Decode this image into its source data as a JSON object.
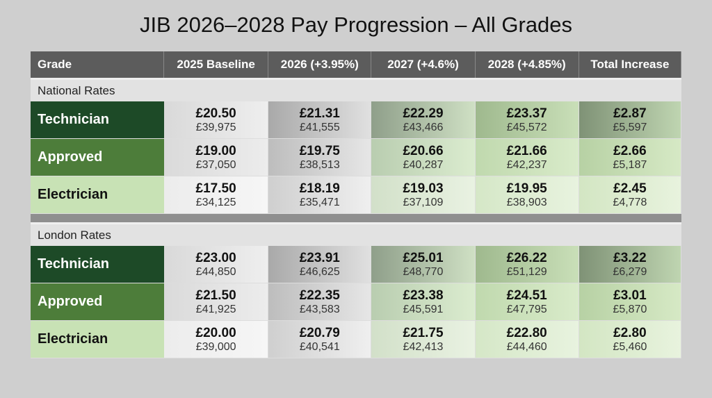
{
  "title": "JIB 2026–2028 Pay Progression – All Grades",
  "table": {
    "headers": [
      "Grade",
      "2025 Baseline",
      "2026 (+3.95%)",
      "2027 (+4.6%)",
      "2028 (+4.85%)",
      "Total Increase"
    ],
    "sections": [
      {
        "name": "National Rates",
        "rows": [
          {
            "grade": "Technician",
            "cells": [
              [
                "£20.50",
                "£39,975"
              ],
              [
                "£21.31",
                "£41,555"
              ],
              [
                "£22.29",
                "£43,466"
              ],
              [
                "£23.37",
                "£45,572"
              ],
              [
                "£2.87",
                "£5,597"
              ]
            ]
          },
          {
            "grade": "Approved",
            "cells": [
              [
                "£19.00",
                "£37,050"
              ],
              [
                "£19.75",
                "£38,513"
              ],
              [
                "£20.66",
                "£40,287"
              ],
              [
                "£21.66",
                "£42,237"
              ],
              [
                "£2.66",
                "£5,187"
              ]
            ]
          },
          {
            "grade": "Electrician",
            "cells": [
              [
                "£17.50",
                "£34,125"
              ],
              [
                "£18.19",
                "£35,471"
              ],
              [
                "£19.03",
                "£37,109"
              ],
              [
                "£19.95",
                "£38,903"
              ],
              [
                "£2.45",
                "£4,778"
              ]
            ]
          }
        ]
      },
      {
        "name": "London Rates",
        "rows": [
          {
            "grade": "Technician",
            "cells": [
              [
                "£23.00",
                "£44,850"
              ],
              [
                "£23.91",
                "£46,625"
              ],
              [
                "£25.01",
                "£48,770"
              ],
              [
                "£26.22",
                "£51,129"
              ],
              [
                "£3.22",
                "£6,279"
              ]
            ]
          },
          {
            "grade": "Approved",
            "cells": [
              [
                "£21.50",
                "£41,925"
              ],
              [
                "£22.35",
                "£43,583"
              ],
              [
                "£23.38",
                "£45,591"
              ],
              [
                "£24.51",
                "£47,795"
              ],
              [
                "£3.01",
                "£5,870"
              ]
            ]
          },
          {
            "grade": "Electrician",
            "cells": [
              [
                "£20.00",
                "£39,000"
              ],
              [
                "£20.79",
                "£40,541"
              ],
              [
                "£21.75",
                "£42,413"
              ],
              [
                "£22.80",
                "£44,460"
              ],
              [
                "£2.80",
                "£5,460"
              ]
            ]
          }
        ]
      }
    ]
  }
}
